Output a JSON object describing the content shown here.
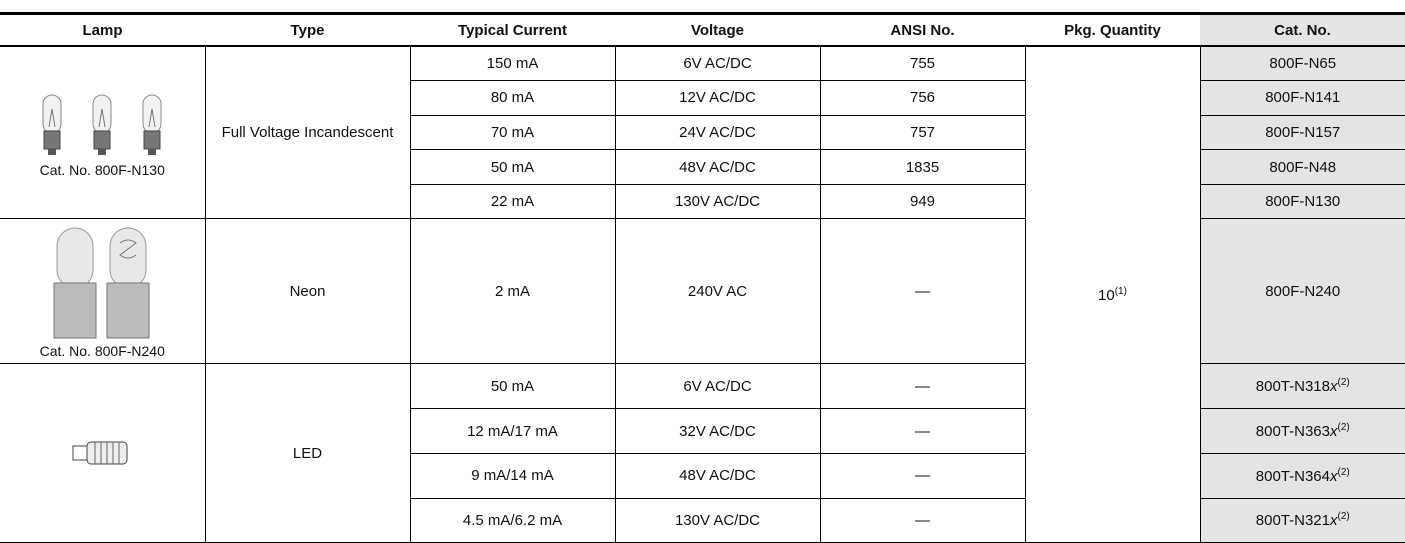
{
  "header": {
    "columns": [
      "Lamp",
      "Type",
      "Typical Current",
      "Voltage",
      "ANSI No.",
      "Pkg. Quantity",
      "Cat. No."
    ]
  },
  "pkg_quantity": {
    "text": "10",
    "note": "(1)"
  },
  "groups": [
    {
      "lamp_caption": "Cat. No. 800F-N130",
      "type": "Full Voltage Incandescent",
      "rows": [
        {
          "current": "150 mA",
          "voltage": "6V AC/DC",
          "ansi": "755",
          "cat": {
            "text": "800F-N65"
          }
        },
        {
          "current": "80 mA",
          "voltage": "12V AC/DC",
          "ansi": "756",
          "cat": {
            "text": "800F-N141"
          }
        },
        {
          "current": "70 mA",
          "voltage": "24V AC/DC",
          "ansi": "757",
          "cat": {
            "text": "800F-N157"
          }
        },
        {
          "current": "50 mA",
          "voltage": "48V AC/DC",
          "ansi": "1835",
          "cat": {
            "text": "800F-N48"
          }
        },
        {
          "current": "22 mA",
          "voltage": "130V AC/DC",
          "ansi": "949",
          "cat": {
            "text": "800F-N130"
          }
        }
      ]
    },
    {
      "lamp_caption": "Cat. No. 800F-N240",
      "type": "Neon",
      "rows": [
        {
          "current": "2 mA",
          "voltage": "240V AC",
          "ansi": "—",
          "cat": {
            "text": "800F-N240"
          }
        }
      ]
    },
    {
      "type": "LED",
      "rows": [
        {
          "current": "50 mA",
          "voltage": "6V AC/DC",
          "ansi": "—",
          "cat": {
            "text": "800T-N318",
            "italic": "x",
            "note": "(2)"
          }
        },
        {
          "current": "12 mA/17 mA",
          "voltage": "32V AC/DC",
          "ansi": "—",
          "cat": {
            "text": "800T-N363",
            "italic": "x",
            "note": "(2)"
          }
        },
        {
          "current": "9 mA/14 mA",
          "voltage": "48V AC/DC",
          "ansi": "—",
          "cat": {
            "text": "800T-N364",
            "italic": "x",
            "note": "(2)"
          }
        },
        {
          "current": "4.5 mA/6.2 mA",
          "voltage": "130V AC/DC",
          "ansi": "—",
          "cat": {
            "text": "800T-N321",
            "italic": "x",
            "note": "(2)"
          }
        }
      ]
    }
  ]
}
